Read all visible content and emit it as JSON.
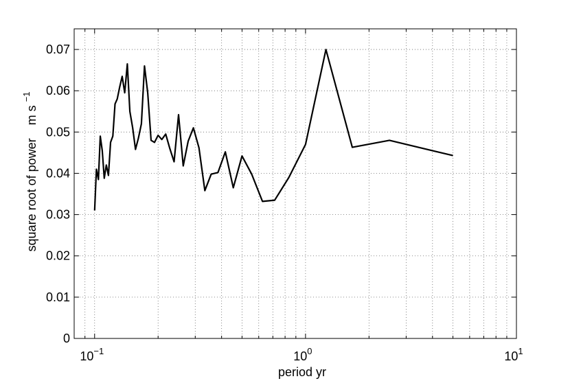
{
  "chart_data": {
    "type": "line",
    "title": "",
    "xlabel": "period    yr",
    "ylabel": "square root of power",
    "ylabel_unit": "m s",
    "ylabel_unit_exp": "−1",
    "xscale": "log",
    "xlim": [
      0.08,
      10
    ],
    "ylim": [
      0,
      0.075
    ],
    "grid": true,
    "legend": "none",
    "x_ticks": [
      {
        "value": 0.1,
        "base": "10",
        "exp": "−1"
      },
      {
        "value": 1,
        "base": "10",
        "exp": "0"
      },
      {
        "value": 10,
        "base": "10",
        "exp": "1"
      }
    ],
    "y_ticks": [
      {
        "value": 0,
        "label": "0"
      },
      {
        "value": 0.01,
        "label": "0.01"
      },
      {
        "value": 0.02,
        "label": "0.02"
      },
      {
        "value": 0.03,
        "label": "0.03"
      },
      {
        "value": 0.04,
        "label": "0.04"
      },
      {
        "value": 0.05,
        "label": "0.05"
      },
      {
        "value": 0.06,
        "label": "0.06"
      },
      {
        "value": 0.07,
        "label": "0.07"
      }
    ],
    "line_color": "#000000",
    "x": [
      0.1,
      0.102,
      0.1042,
      0.1064,
      0.1087,
      0.1111,
      0.1136,
      0.1163,
      0.119,
      0.122,
      0.125,
      0.128,
      0.1316,
      0.1351,
      0.1389,
      0.1429,
      0.147,
      0.1515,
      0.1563,
      0.1613,
      0.1667,
      0.1724,
      0.1786,
      0.1852,
      0.1923,
      0.2,
      0.2083,
      0.2174,
      0.2273,
      0.2381,
      0.25,
      0.2632,
      0.2778,
      0.2941,
      0.3125,
      0.3333,
      0.3571,
      0.3846,
      0.4167,
      0.4545,
      0.5,
      0.5556,
      0.625,
      0.7143,
      0.8333,
      1.0,
      1.25,
      1.6667,
      2.5,
      5.0
    ],
    "y": [
      0.031,
      0.041,
      0.0385,
      0.049,
      0.0455,
      0.0388,
      0.042,
      0.0395,
      0.0475,
      0.049,
      0.0568,
      0.058,
      0.061,
      0.0635,
      0.0595,
      0.0665,
      0.055,
      0.051,
      0.0458,
      0.0485,
      0.052,
      0.066,
      0.0595,
      0.048,
      0.0475,
      0.0492,
      0.0482,
      0.0495,
      0.046,
      0.0428,
      0.0542,
      0.0418,
      0.0478,
      0.051,
      0.0462,
      0.0358,
      0.0398,
      0.0402,
      0.0452,
      0.0365,
      0.0442,
      0.0398,
      0.0332,
      0.0335,
      0.039,
      0.047,
      0.07,
      0.0463,
      0.048,
      0.0443
    ]
  }
}
